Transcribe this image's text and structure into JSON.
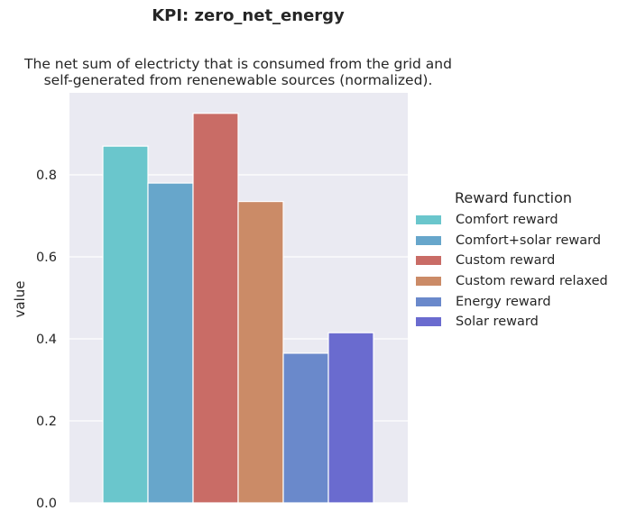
{
  "title": "KPI: zero_net_energy",
  "subtitle_lines": [
    "The net sum of electricty that is consumed from the grid and",
    "self-generated from renenewable sources (normalized)."
  ],
  "chart_data": {
    "type": "bar",
    "title": "KPI: zero_net_energy",
    "subtitle": "The net sum of electricty that is consumed from the grid and self-generated from renenewable sources (normalized).",
    "xlabel": "",
    "ylabel": "value",
    "ylim": [
      0,
      1.0
    ],
    "yticks": [
      "0.0",
      "0.2",
      "0.4",
      "0.6",
      "0.8"
    ],
    "grid": true,
    "legend_title": "Reward function",
    "legend_position": "right",
    "series": [
      {
        "name": "Comfort reward",
        "values": [
          0.87
        ],
        "color": "#6ac6cc"
      },
      {
        "name": "Comfort+solar reward",
        "values": [
          0.78
        ],
        "color": "#67a6cb"
      },
      {
        "name": "Custom reward",
        "values": [
          0.95
        ],
        "color": "#c96c66"
      },
      {
        "name": "Custom reward relaxed",
        "values": [
          0.735
        ],
        "color": "#cb8b67"
      },
      {
        "name": "Energy reward",
        "values": [
          0.365
        ],
        "color": "#6a89cb"
      },
      {
        "name": "Solar reward",
        "values": [
          0.415
        ],
        "color": "#6a6bcf"
      }
    ]
  },
  "colors": {
    "plot_background": "#eaeaf2",
    "grid": "#ffffff"
  }
}
